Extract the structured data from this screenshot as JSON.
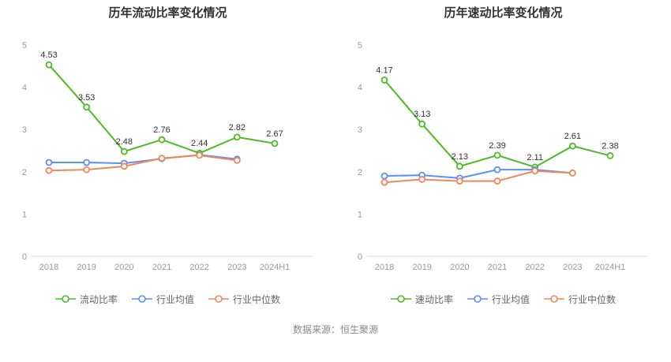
{
  "chart_data": [
    {
      "type": "line",
      "title": "历年流动比率变化情况",
      "categories": [
        "2018",
        "2019",
        "2020",
        "2021",
        "2022",
        "2023",
        "2024H1"
      ],
      "ylim": [
        0,
        5
      ],
      "yticks": [
        0,
        1,
        2,
        3,
        4,
        5
      ],
      "grid": false,
      "legend_position": "bottom",
      "series": [
        {
          "id": "current-ratio",
          "name": "流动比率",
          "color": "#4dbb22",
          "show_labels": true,
          "values": [
            4.53,
            3.53,
            2.48,
            2.76,
            2.44,
            2.82,
            2.67
          ]
        },
        {
          "id": "industry-mean",
          "name": "行业均值",
          "color": "#5b8ff9",
          "show_labels": false,
          "values": [
            2.22,
            2.22,
            2.2,
            2.31,
            2.4,
            2.3,
            null
          ]
        },
        {
          "id": "industry-median",
          "name": "行业中位数",
          "color": "#f0875a",
          "show_labels": false,
          "values": [
            2.03,
            2.05,
            2.13,
            2.32,
            2.39,
            2.27,
            null
          ]
        }
      ]
    },
    {
      "type": "line",
      "title": "历年速动比率变化情况",
      "categories": [
        "2018",
        "2019",
        "2020",
        "2021",
        "2022",
        "2023",
        "2024H1"
      ],
      "ylim": [
        0,
        5
      ],
      "yticks": [
        0,
        1,
        2,
        3,
        4,
        5
      ],
      "grid": false,
      "legend_position": "bottom",
      "series": [
        {
          "id": "quick-ratio",
          "name": "速动比率",
          "color": "#4dbb22",
          "show_labels": true,
          "values": [
            4.17,
            3.13,
            2.13,
            2.39,
            2.11,
            2.61,
            2.38
          ]
        },
        {
          "id": "industry-mean",
          "name": "行业均值",
          "color": "#5b8ff9",
          "show_labels": false,
          "values": [
            1.9,
            1.92,
            1.85,
            2.05,
            2.05,
            1.97,
            null
          ]
        },
        {
          "id": "industry-median",
          "name": "行业中位数",
          "color": "#f0875a",
          "show_labels": false,
          "values": [
            1.75,
            1.82,
            1.78,
            1.78,
            2.02,
            1.97,
            null
          ]
        }
      ]
    }
  ],
  "footer": "数据来源：恒生聚源"
}
